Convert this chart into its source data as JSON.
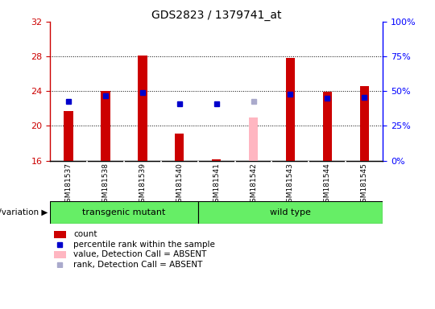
{
  "title": "GDS2823 / 1379741_at",
  "samples": [
    "GSM181537",
    "GSM181538",
    "GSM181539",
    "GSM181540",
    "GSM181541",
    "GSM181542",
    "GSM181543",
    "GSM181544",
    "GSM181545"
  ],
  "count_values": [
    21.7,
    24.0,
    28.1,
    19.1,
    16.2,
    null,
    27.8,
    23.9,
    24.6
  ],
  "count_absent": [
    null,
    null,
    null,
    null,
    null,
    21.0,
    null,
    null,
    null
  ],
  "rank_values": [
    22.8,
    23.5,
    23.8,
    22.5,
    22.5,
    null,
    23.7,
    23.2,
    23.3
  ],
  "rank_absent": [
    null,
    null,
    null,
    null,
    null,
    22.8,
    null,
    null,
    null
  ],
  "ylim_left": [
    16,
    32
  ],
  "ylim_right": [
    0,
    100
  ],
  "yticks_left": [
    16,
    20,
    24,
    28,
    32
  ],
  "yticks_right": [
    0,
    25,
    50,
    75,
    100
  ],
  "bar_base": 16,
  "bar_color": "#cc0000",
  "bar_absent_color": "#ffb6c1",
  "rank_color": "#0000cc",
  "rank_absent_color": "#aaaacc",
  "group_labels": [
    "transgenic mutant",
    "wild type"
  ],
  "group_color": "#66ee66",
  "sample_bg_color": "#cccccc",
  "bar_width": 0.25,
  "rank_marker_size": 5,
  "legend_items": [
    {
      "color": "#cc0000",
      "type": "patch",
      "label": "count"
    },
    {
      "color": "#0000cc",
      "type": "square",
      "label": "percentile rank within the sample"
    },
    {
      "color": "#ffb6c1",
      "type": "patch",
      "label": "value, Detection Call = ABSENT"
    },
    {
      "color": "#aaaacc",
      "type": "square",
      "label": "rank, Detection Call = ABSENT"
    }
  ]
}
